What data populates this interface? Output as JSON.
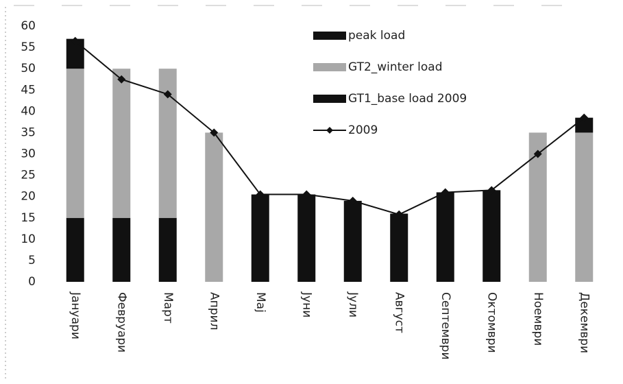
{
  "chart_data": {
    "type": "bar",
    "stacked": true,
    "categories": [
      "Јануари",
      "Февруари",
      "Март",
      "Април",
      "Мај",
      "Јуни",
      "Јули",
      "Август",
      "Септември",
      "Октомври",
      "Ноември",
      "Декември"
    ],
    "series": [
      {
        "name": "GT1_base load 2009",
        "color": "#111111",
        "values": [
          15,
          15,
          15,
          0,
          20.5,
          20.5,
          19,
          16,
          21,
          21.5,
          0,
          0
        ]
      },
      {
        "name": "GT2_winter load",
        "color": "#a8a8a8",
        "values": [
          35,
          35,
          35,
          35,
          0,
          0,
          0,
          0,
          0,
          0,
          35,
          35
        ]
      },
      {
        "name": "peak load",
        "color": "#111111",
        "values": [
          7,
          0,
          0,
          0,
          0,
          0,
          0,
          0,
          0,
          0,
          0,
          3.5
        ]
      },
      {
        "name": "2009",
        "type": "line",
        "color": "#111111",
        "values": [
          56.5,
          47.5,
          44,
          35,
          20.5,
          20.5,
          19,
          15.8,
          21,
          21.5,
          30,
          38.5
        ]
      }
    ],
    "ylim": [
      0,
      60
    ],
    "yticks": [
      0,
      5,
      10,
      15,
      20,
      25,
      30,
      35,
      40,
      45,
      50,
      55,
      60
    ],
    "grid": false
  }
}
